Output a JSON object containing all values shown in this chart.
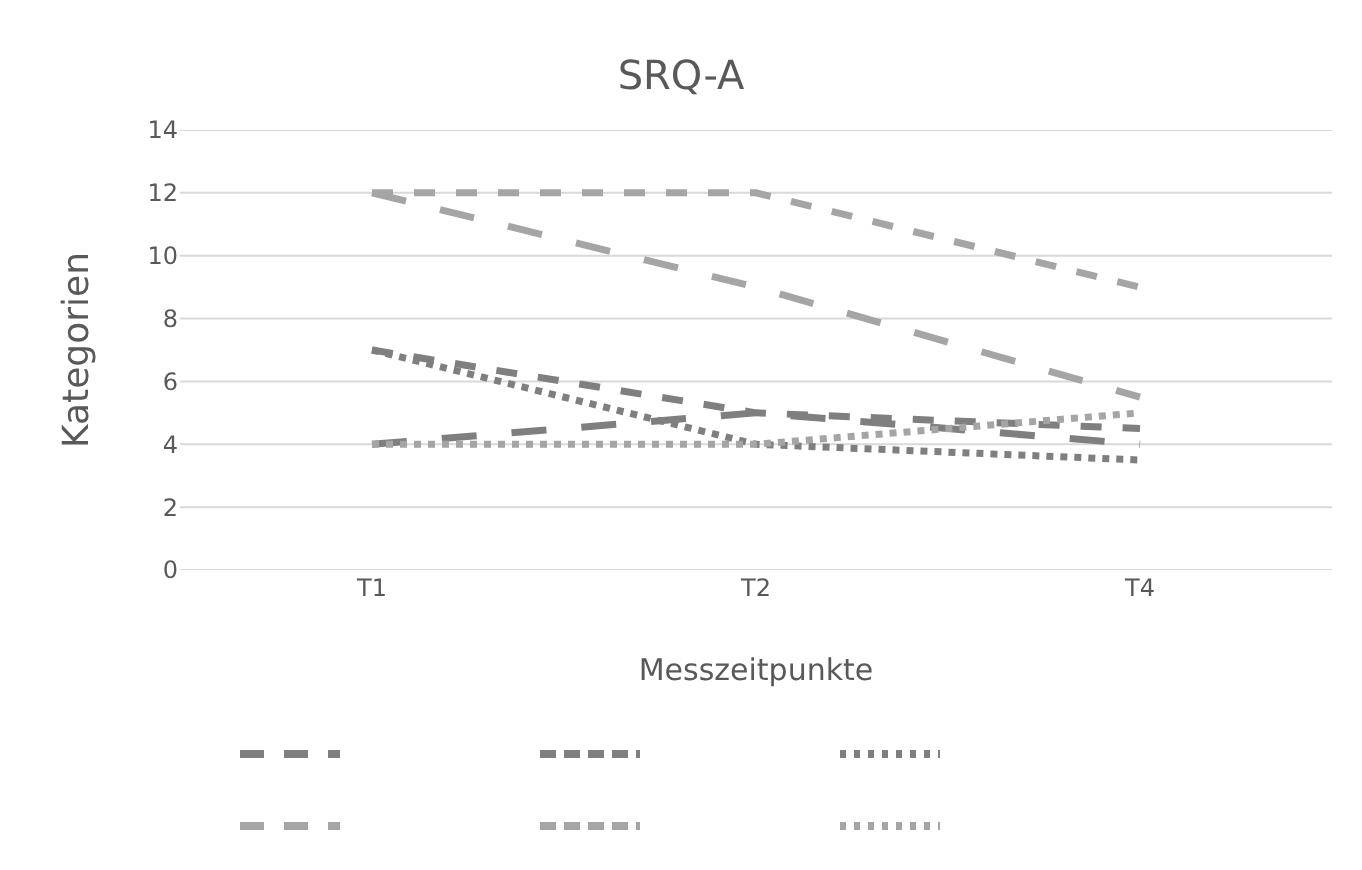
{
  "chart_data": {
    "type": "line",
    "title": "SRQ-A",
    "xlabel": "Messzeitpunkte",
    "ylabel": "Kategorien",
    "categories": [
      "T1",
      "T2",
      "T4"
    ],
    "series": [
      {
        "color": "#7f7f7f",
        "line_style": "longdash",
        "values": [
          4,
          5,
          4
        ]
      },
      {
        "color": "#7f7f7f",
        "line_style": "dashed",
        "values": [
          7,
          5,
          4.5
        ]
      },
      {
        "color": "#7f7f7f",
        "line_style": "dotted",
        "values": [
          7,
          4,
          3.5
        ]
      },
      {
        "color": "#a5a5a5",
        "line_style": "longdash",
        "values": [
          12,
          9,
          5.5
        ]
      },
      {
        "color": "#a5a5a5",
        "line_style": "dashed",
        "values": [
          12,
          12,
          9
        ]
      },
      {
        "color": "#a5a5a5",
        "line_style": "dotted",
        "values": [
          4,
          4,
          5
        ]
      }
    ],
    "ylim": [
      0,
      14
    ],
    "yticks": [
      0,
      2,
      4,
      6,
      8,
      10,
      12,
      14
    ],
    "grid": "y",
    "marker": "none"
  }
}
